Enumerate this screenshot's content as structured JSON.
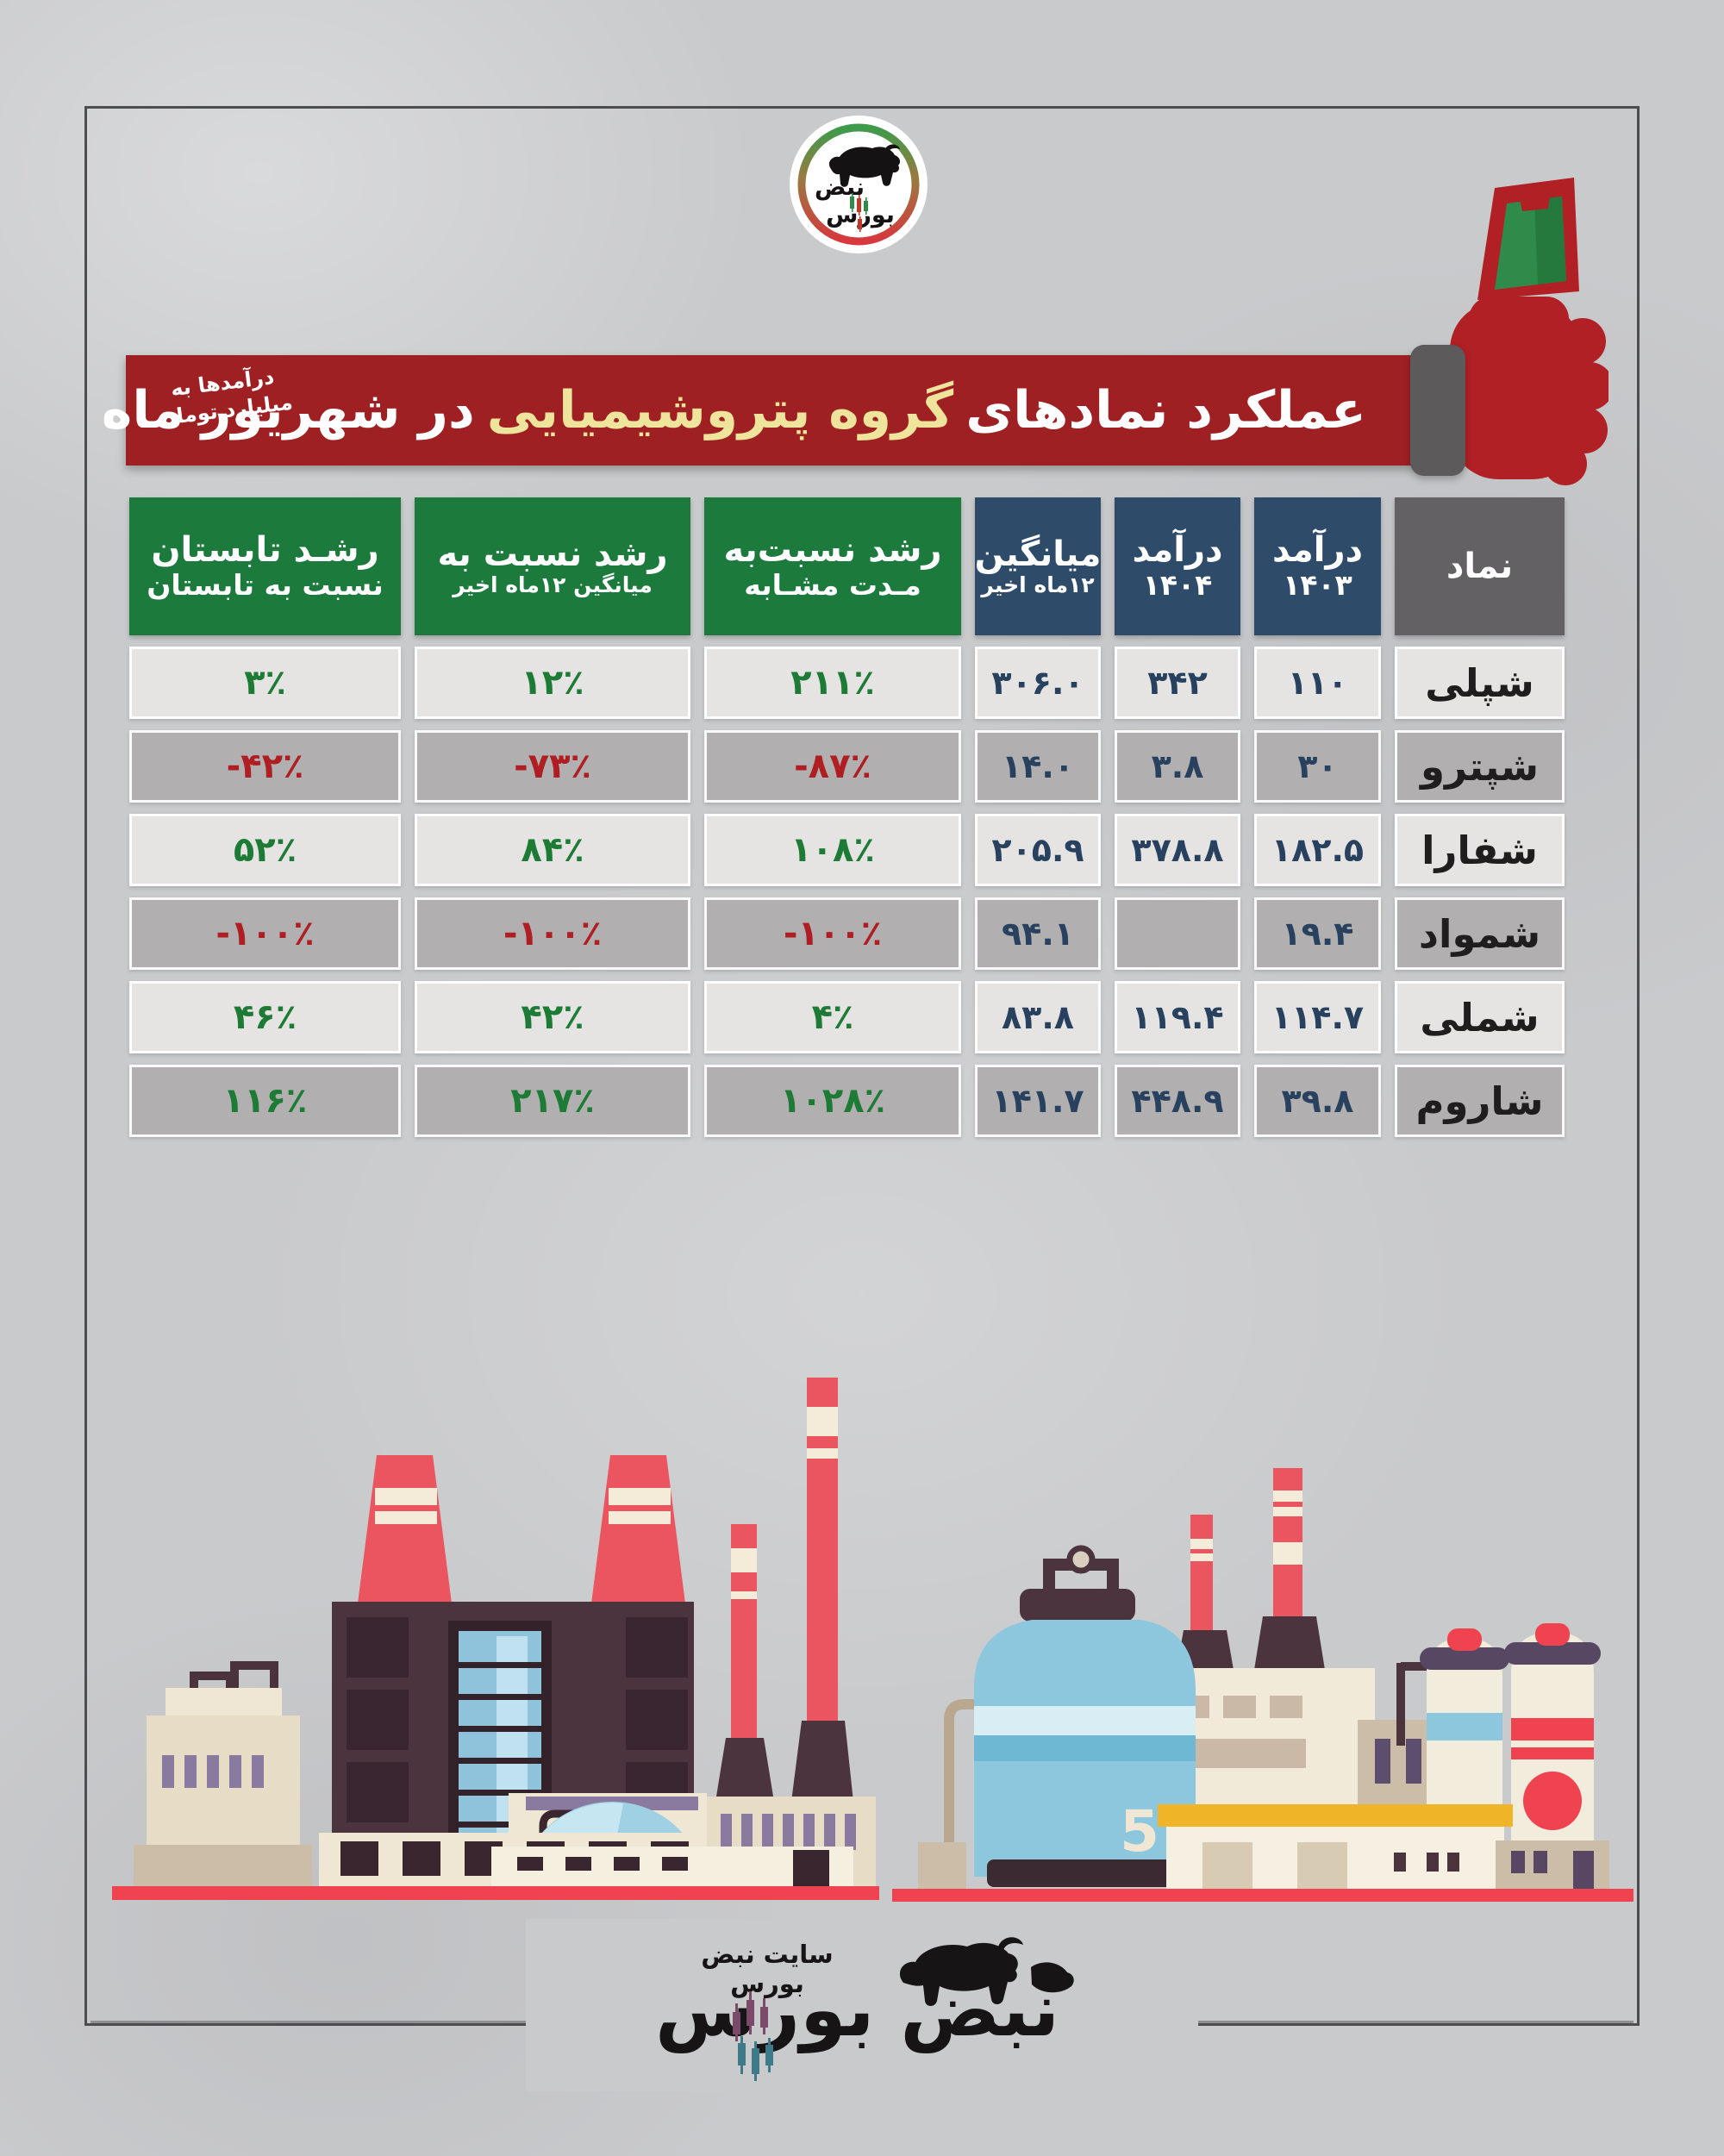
{
  "poster": {
    "background": "#c9cacc",
    "frame_color": "#4d4d4f"
  },
  "logo_top": {
    "brand_line1": "نبض",
    "brand_line2": "بورس"
  },
  "banner": {
    "title_part1": "عملکرد نمادهای",
    "title_highlight": "گروه پتروشیمیایی",
    "title_part2": "در شهریور ماه",
    "note_line1": "درآمدها به",
    "note_line2": "میلیارد تومان",
    "bg_color": "#9e2023",
    "highlight_color": "#efe49b"
  },
  "table": {
    "colors": {
      "header_green": "#1c7a3d",
      "header_navy": "#2e4b69",
      "header_gray": "#636163",
      "positive_text": "#1e7b36",
      "negative_text": "#ae1e23",
      "number_text": "#27415e",
      "row_light_bg": "#e5e4e2",
      "row_dark_bg": "#b1afaf"
    },
    "columns": [
      {
        "id": "symbol",
        "kind": "symbol",
        "header_class": "hdr-gray",
        "lines": [
          "نماد"
        ]
      },
      {
        "id": "income_1403",
        "kind": "number",
        "header_class": "hdr-navy",
        "lines": [
          "درآمد",
          "۱۴۰۳"
        ]
      },
      {
        "id": "income_1404",
        "kind": "number",
        "header_class": "hdr-navy",
        "lines": [
          "درآمد",
          "۱۴۰۴"
        ]
      },
      {
        "id": "avg_12m",
        "kind": "number",
        "header_class": "hdr-navy sm2",
        "lines": [
          "میانگین",
          "۱۲ماه اخیر"
        ]
      },
      {
        "id": "growth_similar",
        "kind": "growth",
        "header_class": "hdr-green",
        "lines": [
          "رشد نسبت‌به",
          "مـدت مشـابه"
        ]
      },
      {
        "id": "growth_avg",
        "kind": "growth",
        "header_class": "hdr-green sm2",
        "lines": [
          "رشد نسبت به",
          "میانگین ۱۲ماه اخیر"
        ]
      },
      {
        "id": "growth_summer",
        "kind": "growth",
        "header_class": "hdr-green",
        "lines": [
          "رشـد تابستان",
          "نسبت به تابستان"
        ]
      }
    ],
    "rows": [
      {
        "shade": "light",
        "cells": {
          "symbol": "شپلی",
          "income_1403": "۱۱۰",
          "income_1404": "۳۴۲",
          "avg_12m": "۳۰۶.۰",
          "growth_similar": "۲۱۱٪",
          "growth_avg": "۱۲٪",
          "growth_summer": "۳٪"
        }
      },
      {
        "shade": "dark",
        "cells": {
          "symbol": "شپترو",
          "income_1403": "۳۰",
          "income_1404": "۳.۸",
          "avg_12m": "۱۴.۰",
          "growth_similar": "-۸۷٪",
          "growth_avg": "-۷۳٪",
          "growth_summer": "-۴۲٪"
        }
      },
      {
        "shade": "light",
        "cells": {
          "symbol": "شفارا",
          "income_1403": "۱۸۲.۵",
          "income_1404": "۳۷۸.۸",
          "avg_12m": "۲۰۵.۹",
          "growth_similar": "۱۰۸٪",
          "growth_avg": "۸۴٪",
          "growth_summer": "۵۲٪"
        }
      },
      {
        "shade": "dark",
        "cells": {
          "symbol": "شمواد",
          "income_1403": "۱۹.۴",
          "income_1404": "",
          "avg_12m": "۹۴.۱",
          "growth_similar": "-۱۰۰٪",
          "growth_avg": "-۱۰۰٪",
          "growth_summer": "-۱۰۰٪"
        }
      },
      {
        "shade": "light",
        "cells": {
          "symbol": "شملی",
          "income_1403": "۱۱۴.۷",
          "income_1404": "۱۱۹.۴",
          "avg_12m": "۸۳.۸",
          "growth_similar": "۴٪",
          "growth_avg": "۴۲٪",
          "growth_summer": "۴۶٪"
        }
      },
      {
        "shade": "dark",
        "cells": {
          "symbol": "شاروم",
          "income_1403": "۳۹.۸",
          "income_1404": "۴۴۸.۹",
          "avg_12m": "۱۴۱.۷",
          "growth_similar": "۱۰۲۸٪",
          "growth_avg": "۲۱۷٪",
          "growth_summer": "۱۱۶٪"
        }
      }
    ]
  },
  "footer": {
    "site_label": "سایت نبض بورس",
    "brand": "نبض بورس"
  },
  "chart_data": {
    "type": "table",
    "title": "عملکرد نمادهای گروه پتروشیمیایی در شهریور ماه",
    "unit_note": "درآمدها به میلیارد تومان",
    "columns": [
      "نماد",
      "درآمد ۱۴۰۳",
      "درآمد ۱۴۰۴",
      "میانگین ۱۲ماه اخیر",
      "رشد نسبت‌به مدت مشابه (%)",
      "رشد نسبت به میانگین ۱۲ماه اخیر (%)",
      "رشد تابستان نسبت به تابستان (%)"
    ],
    "rows": [
      {
        "symbol": "شپلی",
        "income_1403": 110,
        "income_1404": 342,
        "avg_12m": 306.0,
        "growth_similar_pct": 211,
        "growth_vs_avg_pct": 12,
        "growth_summer_pct": 3
      },
      {
        "symbol": "شپترو",
        "income_1403": 30,
        "income_1404": 3.8,
        "avg_12m": 14.0,
        "growth_similar_pct": -87,
        "growth_vs_avg_pct": -73,
        "growth_summer_pct": -42
      },
      {
        "symbol": "شفارا",
        "income_1403": 182.5,
        "income_1404": 378.8,
        "avg_12m": 205.9,
        "growth_similar_pct": 108,
        "growth_vs_avg_pct": 84,
        "growth_summer_pct": 52
      },
      {
        "symbol": "شمواد",
        "income_1403": 19.4,
        "income_1404": null,
        "avg_12m": 94.1,
        "growth_similar_pct": -100,
        "growth_vs_avg_pct": -100,
        "growth_summer_pct": -100
      },
      {
        "symbol": "شملی",
        "income_1403": 114.7,
        "income_1404": 119.4,
        "avg_12m": 83.8,
        "growth_similar_pct": 4,
        "growth_vs_avg_pct": 42,
        "growth_summer_pct": 46
      },
      {
        "symbol": "شاروم",
        "income_1403": 39.8,
        "income_1404": 448.9,
        "avg_12m": 141.7,
        "growth_similar_pct": 1028,
        "growth_vs_avg_pct": 217,
        "growth_summer_pct": 116
      }
    ]
  }
}
